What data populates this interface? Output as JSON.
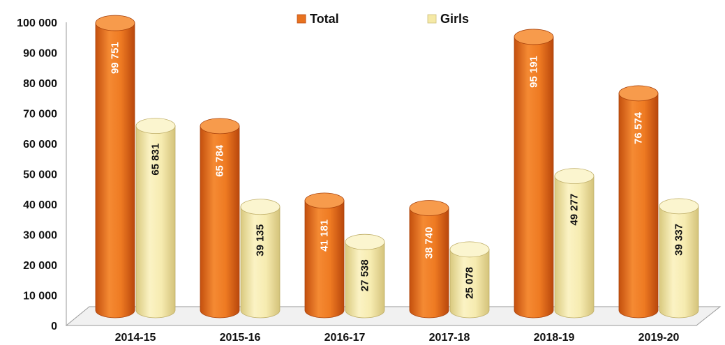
{
  "chart_data": {
    "type": "bar",
    "categories": [
      "2014-15",
      "2015-16",
      "2016-17",
      "2017-18",
      "2018-19",
      "2019-20"
    ],
    "series": [
      {
        "name": "Total",
        "values": [
          99751,
          65784,
          41181,
          38740,
          95191,
          76574
        ],
        "labels": [
          "99 751",
          "65 784",
          "41 181",
          "38 740",
          "95 191",
          "76 574"
        ],
        "color": "#E8721F"
      },
      {
        "name": "Girls",
        "values": [
          65831,
          39135,
          27538,
          25078,
          49277,
          39337
        ],
        "labels": [
          "65 831",
          "39 135",
          "27 538",
          "25 078",
          "49 277",
          "39 337"
        ],
        "color": "#F5E9A6"
      }
    ],
    "yticks": [
      0,
      10000,
      20000,
      30000,
      40000,
      50000,
      60000,
      70000,
      80000,
      90000,
      100000
    ],
    "ytick_labels": [
      "0",
      "10 000",
      "20 000",
      "30 000",
      "40 000",
      "50 000",
      "60 000",
      "70 000",
      "80 000",
      "90 000",
      "100 000"
    ],
    "ylim": [
      0,
      100000
    ],
    "legend_position": "top-center",
    "grid": false,
    "title": "",
    "xlabel": "",
    "ylabel": ""
  }
}
